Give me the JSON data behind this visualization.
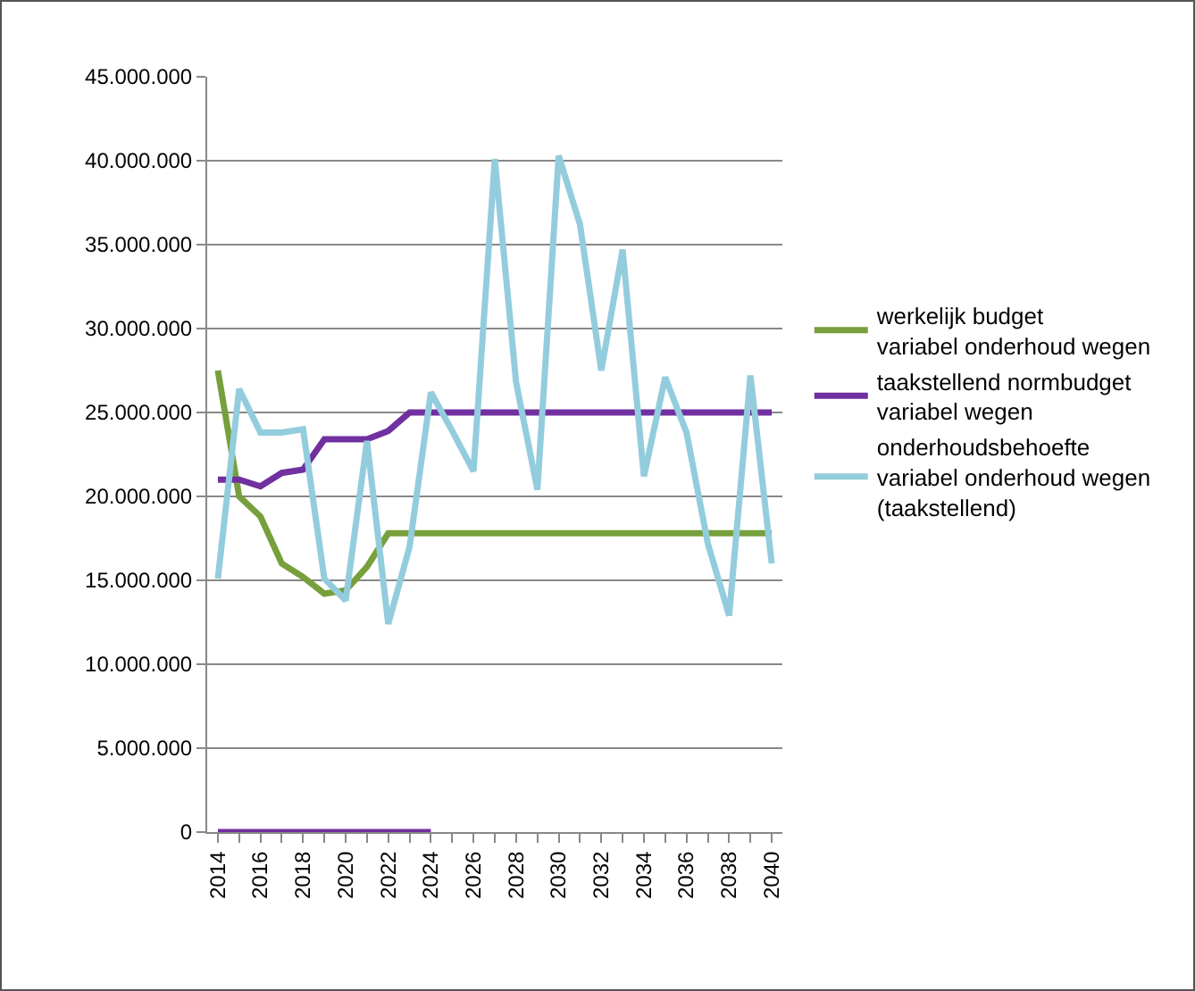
{
  "chart_data": {
    "type": "line",
    "categories": [
      "2014",
      null,
      "2016",
      null,
      "2018",
      null,
      "2020",
      null,
      "2022",
      null,
      "2024",
      null,
      "2026",
      null,
      "2028",
      null,
      "2030",
      null,
      "2032",
      null,
      "2034",
      null,
      "2036",
      null,
      "2038",
      null,
      "2040"
    ],
    "series": [
      {
        "name": "werkelijk budget variabel onderhoud wegen",
        "color": "#77a03d",
        "values": [
          27500000,
          20000000,
          18800000,
          16000000,
          15200000,
          14200000,
          14400000,
          15800000,
          17800000,
          17800000,
          17800000,
          17800000,
          17800000,
          17800000,
          17800000,
          17800000,
          17800000,
          17800000,
          17800000,
          17800000,
          17800000,
          17800000,
          17800000,
          17800000,
          17800000,
          17800000,
          17800000
        ]
      },
      {
        "name": "taakstellend normbudget variabel wegen",
        "color": "#7030a0",
        "values": [
          21000000,
          21000000,
          20600000,
          21400000,
          21600000,
          23400000,
          23400000,
          23400000,
          23900000,
          25000000,
          25000000,
          25000000,
          25000000,
          25000000,
          25000000,
          25000000,
          25000000,
          25000000,
          25000000,
          25000000,
          25000000,
          25000000,
          25000000,
          25000000,
          25000000,
          25000000,
          25000000
        ]
      },
      {
        "name": "onderhoudsbehoefte variabel onderhoud wegen (taakstellend)",
        "color": "#93cddd",
        "values": [
          15100000,
          26400000,
          23800000,
          23800000,
          24000000,
          15100000,
          13800000,
          23300000,
          12400000,
          17000000,
          26200000,
          23900000,
          21500000,
          40100000,
          26800000,
          20400000,
          40300000,
          36200000,
          27500000,
          34700000,
          21200000,
          27100000,
          23800000,
          17200000,
          12900000,
          27200000,
          16000000
        ]
      },
      {
        "color": "#7030a0",
        "values": [
          0,
          0,
          0,
          0,
          0,
          0,
          0,
          0,
          0,
          0,
          0,
          null,
          null,
          null,
          null,
          null,
          null,
          null,
          null,
          null,
          null,
          null,
          null,
          null,
          null,
          null,
          null
        ]
      }
    ],
    "ylim": [
      0,
      45000000
    ],
    "yticks": [
      {
        "value": 0,
        "label": "0"
      },
      {
        "value": 5000000,
        "label": "5.000.000"
      },
      {
        "value": 10000000,
        "label": "10.000.000"
      },
      {
        "value": 15000000,
        "label": "15.000.000"
      },
      {
        "value": 20000000,
        "label": "20.000.000"
      },
      {
        "value": 25000000,
        "label": "25.000.000"
      },
      {
        "value": 30000000,
        "label": "30.000.000"
      },
      {
        "value": 35000000,
        "label": "35.000.000"
      },
      {
        "value": 40000000,
        "label": "40.000.000"
      },
      {
        "value": 45000000,
        "label": "45.000.000"
      }
    ],
    "grid": "y",
    "legend": "right",
    "marker": "none",
    "line_style": "solid"
  }
}
